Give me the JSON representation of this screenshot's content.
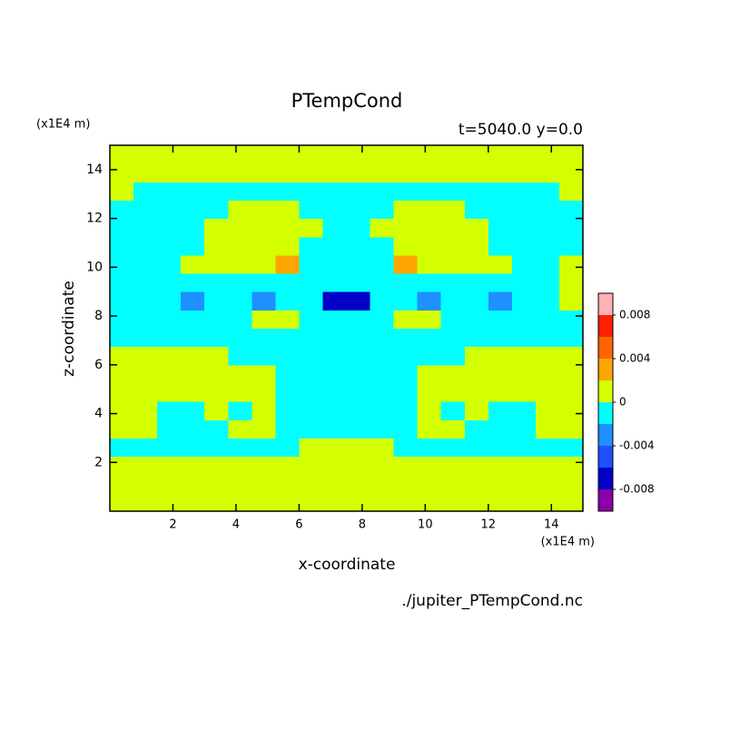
{
  "chart_data": {
    "type": "contour",
    "title": "PTempCond",
    "subtitle": "t=5040.0 y=0.0",
    "x_label": "x-coordinate",
    "y_label": "z-coordinate",
    "x_unit": "(x1E4 m)",
    "y_unit": "(x1E4 m)",
    "source": "./jupiter_PTempCond.nc",
    "xlim": [
      0,
      15
    ],
    "ylim": [
      0,
      15
    ],
    "xticks": [
      2,
      4,
      6,
      8,
      10,
      12,
      14
    ],
    "yticks": [
      2,
      4,
      6,
      8,
      10,
      12,
      14
    ],
    "x": [
      0,
      0.75,
      1.5,
      2.25,
      3,
      3.75,
      4.5,
      5.25,
      6,
      6.75,
      7.5,
      8.25,
      9,
      9.75,
      10.5,
      11.25,
      12,
      12.75,
      13.5,
      14.25,
      15
    ],
    "y": [
      0,
      0.75,
      1.5,
      2.25,
      3,
      3.75,
      4.5,
      5.25,
      6,
      6.75,
      7.5,
      8.25,
      9,
      9.75,
      10.5,
      11.25,
      12,
      12.75,
      13.5,
      14.25,
      15
    ],
    "z": [
      [
        0.001,
        0.001,
        0.001,
        0.001,
        0.001,
        0.001,
        0.001,
        0.001,
        0.001,
        0.001,
        0.001,
        0.001,
        0.001,
        0.001,
        0.001,
        0.001,
        0.001,
        0.001,
        0.001,
        0.001
      ],
      [
        0.001,
        0.001,
        0.001,
        0.001,
        0.001,
        0.001,
        0.001,
        0.001,
        0.001,
        0.001,
        0.001,
        0.001,
        0.001,
        0.001,
        0.001,
        0.001,
        0.001,
        0.001,
        0.001,
        0.001
      ],
      [
        0.001,
        0.001,
        0.001,
        0.001,
        0.001,
        0.001,
        0.001,
        0.001,
        0.001,
        0.001,
        0.001,
        0.001,
        0.001,
        0.001,
        0.001,
        0.001,
        0.001,
        0.001,
        0.001,
        0.001
      ],
      [
        -0.001,
        -0.001,
        -0.001,
        -0.001,
        -0.001,
        -0.001,
        -0.001,
        -0.001,
        0.001,
        0.001,
        0.001,
        0.001,
        -0.001,
        -0.001,
        -0.001,
        -0.001,
        -0.001,
        -0.001,
        -0.001,
        -0.001
      ],
      [
        0.001,
        0.001,
        -0.001,
        -0.001,
        -0.001,
        0.001,
        0.001,
        -0.001,
        -0.001,
        -0.001,
        -0.001,
        -0.001,
        -0.001,
        0.001,
        0.001,
        -0.001,
        -0.001,
        -0.001,
        0.001,
        0.001
      ],
      [
        0.001,
        0.001,
        -0.001,
        -0.001,
        0.001,
        -0.001,
        0.001,
        -0.001,
        -0.001,
        -0.001,
        -0.001,
        -0.001,
        -0.001,
        0.001,
        -0.001,
        0.001,
        -0.001,
        -0.001,
        0.001,
        0.001
      ],
      [
        0.001,
        0.001,
        0.001,
        0.001,
        0.001,
        0.001,
        0.001,
        -0.001,
        -0.001,
        -0.001,
        -0.001,
        -0.001,
        -0.001,
        0.001,
        0.001,
        0.001,
        0.001,
        0.001,
        0.001,
        0.001
      ],
      [
        0.001,
        0.001,
        0.001,
        0.001,
        0.001,
        0.001,
        0.001,
        -0.001,
        -0.001,
        -0.001,
        -0.001,
        -0.001,
        -0.001,
        0.001,
        0.001,
        0.001,
        0.001,
        0.001,
        0.001,
        0.001
      ],
      [
        0.001,
        0.001,
        0.001,
        0.001,
        0.001,
        -0.001,
        -0.001,
        -0.001,
        -0.001,
        -0.001,
        -0.001,
        -0.001,
        -0.001,
        -0.001,
        -0.001,
        0.001,
        0.001,
        0.001,
        0.001,
        0.001
      ],
      [
        -0.001,
        -0.001,
        -0.001,
        -0.001,
        -0.001,
        -0.001,
        -0.001,
        -0.001,
        -0.001,
        -0.001,
        -0.001,
        -0.001,
        -0.001,
        -0.001,
        -0.001,
        -0.001,
        -0.001,
        -0.001,
        -0.001,
        -0.001
      ],
      [
        -0.001,
        -0.001,
        -0.001,
        -0.001,
        -0.001,
        -0.001,
        0.001,
        0.001,
        -0.001,
        -0.001,
        -0.001,
        -0.001,
        0.001,
        0.001,
        -0.001,
        -0.001,
        -0.001,
        -0.001,
        -0.001,
        -0.001
      ],
      [
        -0.001,
        -0.001,
        -0.001,
        -0.003,
        -0.001,
        -0.001,
        -0.003,
        -0.001,
        -0.001,
        -0.007,
        -0.007,
        -0.001,
        -0.001,
        -0.003,
        -0.001,
        -0.001,
        -0.003,
        -0.001,
        -0.001,
        0.001
      ],
      [
        -0.001,
        -0.001,
        -0.001,
        -0.001,
        -0.001,
        -0.001,
        -0.001,
        -0.001,
        -0.001,
        -0.001,
        -0.001,
        -0.001,
        -0.001,
        -0.001,
        -0.001,
        -0.001,
        -0.001,
        -0.001,
        -0.001,
        0.001
      ],
      [
        -0.001,
        -0.001,
        -0.001,
        0.001,
        0.001,
        0.001,
        0.001,
        0.003,
        -0.001,
        -0.001,
        -0.001,
        -0.001,
        0.003,
        0.001,
        0.001,
        0.001,
        0.001,
        -0.001,
        -0.001,
        0.001
      ],
      [
        -0.001,
        -0.001,
        -0.001,
        -0.001,
        0.001,
        0.001,
        0.001,
        0.001,
        -0.001,
        -0.001,
        -0.001,
        -0.001,
        0.001,
        0.001,
        0.001,
        0.001,
        -0.001,
        -0.001,
        -0.001,
        -0.001
      ],
      [
        -0.001,
        -0.001,
        -0.001,
        -0.001,
        0.001,
        0.001,
        0.001,
        0.001,
        0.001,
        -0.001,
        -0.001,
        0.001,
        0.001,
        0.001,
        0.001,
        0.001,
        -0.001,
        -0.001,
        -0.001,
        -0.001
      ],
      [
        -0.001,
        -0.001,
        -0.001,
        -0.001,
        -0.001,
        0.001,
        0.001,
        0.001,
        -0.001,
        -0.001,
        -0.001,
        -0.001,
        0.001,
        0.001,
        0.001,
        -0.001,
        -0.001,
        -0.001,
        -0.001,
        -0.001
      ],
      [
        0.001,
        -0.001,
        -0.001,
        -0.001,
        -0.001,
        -0.001,
        -0.001,
        -0.001,
        -0.001,
        -0.001,
        -0.001,
        -0.001,
        -0.001,
        -0.001,
        -0.001,
        -0.001,
        -0.001,
        -0.001,
        -0.001,
        0.001
      ],
      [
        0.001,
        0.001,
        0.001,
        0.001,
        0.001,
        0.001,
        0.001,
        0.001,
        0.001,
        0.001,
        0.001,
        0.001,
        0.001,
        0.001,
        0.001,
        0.001,
        0.001,
        0.001,
        0.001,
        0.001
      ],
      [
        0.001,
        0.001,
        0.001,
        0.001,
        0.001,
        0.001,
        0.001,
        0.001,
        0.001,
        0.001,
        0.001,
        0.001,
        0.001,
        0.001,
        0.001,
        0.001,
        0.001,
        0.001,
        0.001,
        0.001
      ]
    ],
    "colorbar": {
      "levels": [
        -0.01,
        -0.008,
        -0.006,
        -0.004,
        -0.002,
        0,
        0.002,
        0.004,
        0.006,
        0.008,
        0.01
      ],
      "colors": [
        "#8a00a8",
        "#0000c8",
        "#1e50ff",
        "#1e90ff",
        "#00ffff",
        "#d4ff00",
        "#ffa500",
        "#ff6400",
        "#ff1e00",
        "#ffb0b4"
      ],
      "ticks": [
        -0.008,
        -0.004,
        0,
        0.004,
        0.008
      ]
    }
  }
}
